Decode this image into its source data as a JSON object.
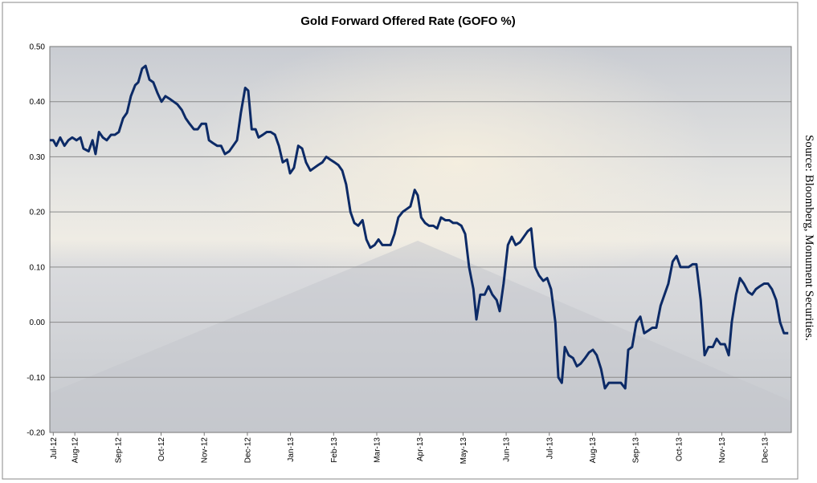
{
  "chart_data": {
    "type": "line",
    "title": "Gold Forward Offered Rate (GOFO %)",
    "source": "Source: Bloomberg, Monument Securities.",
    "x": [
      0.42,
      0.5,
      0.57,
      0.66,
      0.76,
      0.85,
      0.94,
      1.04,
      1.13,
      1.2,
      1.32,
      1.41,
      1.48,
      1.56,
      1.65,
      1.74,
      1.84,
      1.93,
      2.02,
      2.12,
      2.21,
      2.3,
      2.4,
      2.47,
      2.56,
      2.64,
      2.73,
      2.82,
      2.92,
      3.01,
      3.1,
      3.2,
      3.29,
      3.38,
      3.48,
      3.57,
      3.66,
      3.76,
      3.85,
      3.94,
      4.04,
      4.11,
      4.2,
      4.3,
      4.39,
      4.48,
      4.58,
      4.67,
      4.76,
      4.85,
      4.95,
      5.02,
      5.1,
      5.19,
      5.26,
      5.36,
      5.45,
      5.54,
      5.64,
      5.73,
      5.82,
      5.92,
      5.99,
      6.08,
      6.18,
      6.27,
      6.36,
      6.46,
      6.55,
      6.64,
      6.74,
      6.83,
      6.92,
      7.02,
      7.11,
      7.2,
      7.29,
      7.39,
      7.48,
      7.57,
      7.67,
      7.76,
      7.85,
      7.95,
      8.04,
      8.13,
      8.23,
      8.32,
      8.41,
      8.5,
      8.6,
      8.69,
      8.78,
      8.88,
      8.95,
      9.03,
      9.12,
      9.21,
      9.31,
      9.4,
      9.49,
      9.59,
      9.68,
      9.77,
      9.86,
      9.96,
      10.05,
      10.14,
      10.24,
      10.31,
      10.4,
      10.5,
      10.59,
      10.68,
      10.78,
      10.85,
      10.94,
      11.04,
      11.13,
      11.22,
      11.32,
      11.41,
      11.5,
      11.58,
      11.67,
      11.76,
      11.86,
      11.95,
      12.04,
      12.14,
      12.21,
      12.29,
      12.36,
      12.45,
      12.55,
      12.64,
      12.73,
      12.83,
      12.92,
      13.01,
      13.1,
      13.2,
      13.29,
      13.38,
      13.48,
      13.57,
      13.66,
      13.76,
      13.83,
      13.92,
      14.02,
      14.11,
      14.2,
      14.3,
      14.39,
      14.48,
      14.58,
      14.67,
      14.76,
      14.86,
      14.95,
      15.04,
      15.13,
      15.23,
      15.32,
      15.41,
      15.51,
      15.6,
      15.69,
      15.79,
      15.88,
      15.97,
      16.07,
      16.16,
      16.23,
      16.33,
      16.42,
      16.51,
      16.61,
      16.7,
      16.79,
      16.88,
      16.98,
      17.07,
      17.16,
      17.26,
      17.35,
      17.44,
      17.54
    ],
    "values": [
      0.33,
      0.33,
      0.32,
      0.335,
      0.32,
      0.33,
      0.335,
      0.33,
      0.335,
      0.315,
      0.31,
      0.33,
      0.305,
      0.345,
      0.335,
      0.33,
      0.34,
      0.34,
      0.345,
      0.37,
      0.38,
      0.41,
      0.43,
      0.435,
      0.46,
      0.465,
      0.44,
      0.435,
      0.415,
      0.4,
      0.41,
      0.405,
      0.4,
      0.395,
      0.385,
      0.37,
      0.36,
      0.35,
      0.35,
      0.36,
      0.36,
      0.33,
      0.325,
      0.32,
      0.32,
      0.305,
      0.31,
      0.32,
      0.33,
      0.38,
      0.425,
      0.42,
      0.35,
      0.35,
      0.335,
      0.34,
      0.345,
      0.345,
      0.34,
      0.32,
      0.29,
      0.295,
      0.27,
      0.28,
      0.32,
      0.315,
      0.29,
      0.275,
      0.28,
      0.285,
      0.29,
      0.3,
      0.295,
      0.29,
      0.285,
      0.275,
      0.25,
      0.2,
      0.18,
      0.175,
      0.185,
      0.15,
      0.135,
      0.14,
      0.15,
      0.14,
      0.14,
      0.14,
      0.16,
      0.19,
      0.2,
      0.205,
      0.21,
      0.24,
      0.23,
      0.19,
      0.18,
      0.175,
      0.175,
      0.17,
      0.19,
      0.185,
      0.185,
      0.18,
      0.18,
      0.175,
      0.16,
      0.1,
      0.06,
      0.005,
      0.05,
      0.05,
      0.065,
      0.05,
      0.04,
      0.02,
      0.07,
      0.14,
      0.155,
      0.14,
      0.145,
      0.155,
      0.165,
      0.17,
      0.1,
      0.085,
      0.075,
      0.08,
      0.06,
      0.0,
      -0.1,
      -0.11,
      -0.045,
      -0.06,
      -0.065,
      -0.08,
      -0.075,
      -0.065,
      -0.055,
      -0.05,
      -0.06,
      -0.085,
      -0.12,
      -0.11,
      -0.11,
      -0.11,
      -0.11,
      -0.12,
      -0.05,
      -0.045,
      0.0,
      0.01,
      -0.02,
      -0.015,
      -0.01,
      -0.01,
      0.03,
      0.05,
      0.07,
      0.11,
      0.12,
      0.1,
      0.1,
      0.1,
      0.105,
      0.105,
      0.04,
      -0.06,
      -0.045,
      -0.045,
      -0.03,
      -0.04,
      -0.04,
      -0.06,
      0.0,
      0.05,
      0.08,
      0.07,
      0.055,
      0.05,
      0.06,
      0.065,
      0.07,
      0.07,
      0.06,
      0.04,
      0.0,
      -0.02,
      -0.02
    ],
    "color": "#0c2a66",
    "xlim": [
      0.42,
      17.61
    ],
    "xticks": [
      {
        "value": 0.5,
        "label": "Jul-12"
      },
      {
        "value": 1,
        "label": "Aug-12"
      },
      {
        "value": 2,
        "label": "Sep-12"
      },
      {
        "value": 3,
        "label": "Oct-12"
      },
      {
        "value": 4,
        "label": "Nov-12"
      },
      {
        "value": 5,
        "label": "Dec-12"
      },
      {
        "value": 6,
        "label": "Jan-13"
      },
      {
        "value": 7,
        "label": "Feb-13"
      },
      {
        "value": 8,
        "label": "Mar-13"
      },
      {
        "value": 9,
        "label": "Apr-13"
      },
      {
        "value": 10,
        "label": "May-13"
      },
      {
        "value": 11,
        "label": "Jun-13"
      },
      {
        "value": 12,
        "label": "Jul-13"
      },
      {
        "value": 13,
        "label": "Aug-13"
      },
      {
        "value": 14,
        "label": "Sep-13"
      },
      {
        "value": 15,
        "label": "Oct-13"
      },
      {
        "value": 16,
        "label": "Nov-13"
      },
      {
        "value": 17,
        "label": "Dec-13"
      }
    ],
    "ylim": [
      -0.2,
      0.5
    ],
    "yticks": [
      {
        "value": -0.2,
        "label": "-0.20"
      },
      {
        "value": -0.1,
        "label": "-0.10"
      },
      {
        "value": 0,
        "label": "0.00"
      },
      {
        "value": 0.1,
        "label": "0.10"
      },
      {
        "value": 0.2,
        "label": "0.20"
      },
      {
        "value": 0.3,
        "label": "0.30"
      },
      {
        "value": 0.4,
        "label": "0.40"
      },
      {
        "value": 0.5,
        "label": "0.50"
      }
    ],
    "grid": true
  }
}
